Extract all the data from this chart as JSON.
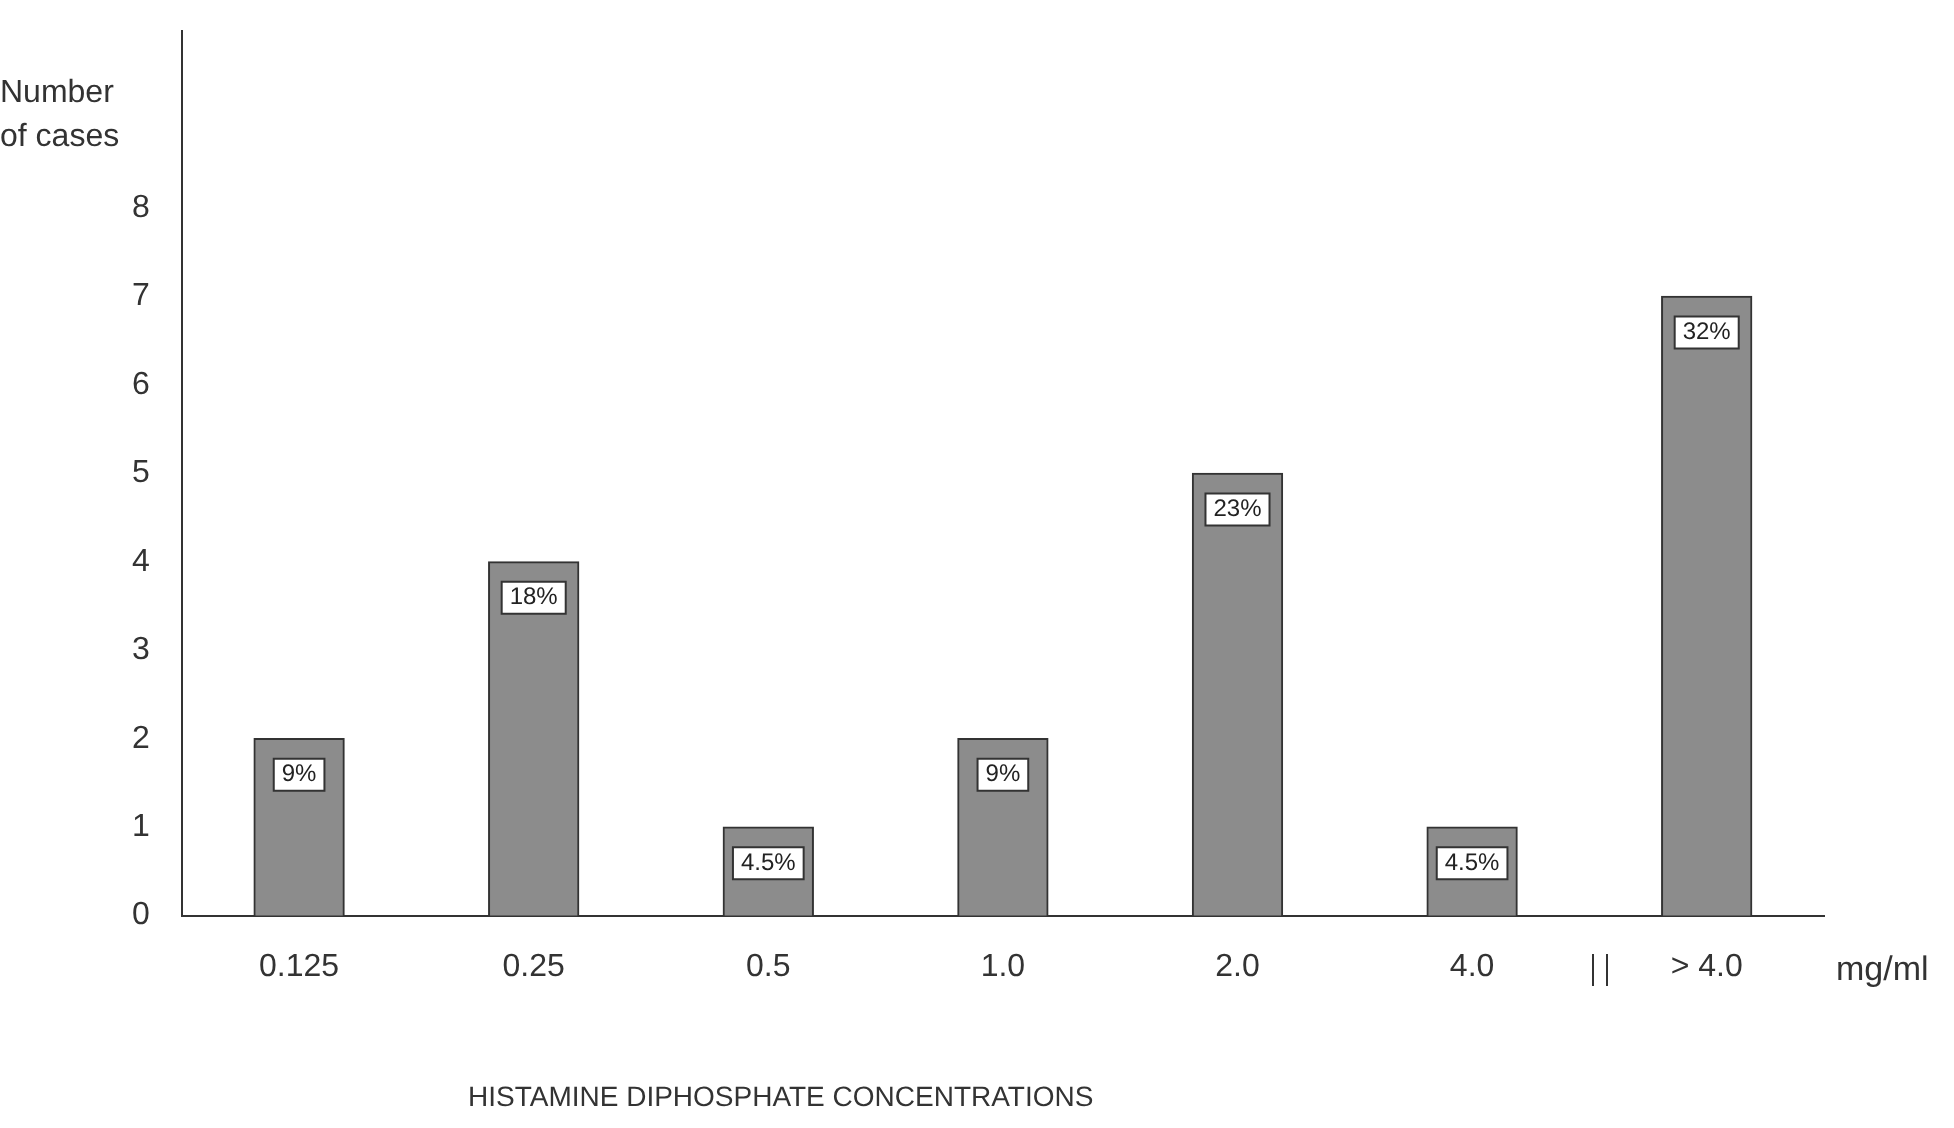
{
  "chart_data": {
    "type": "bar",
    "ylabel": "Number\nof cases",
    "xlabel": "HISTAMINE DIPHOSPHATE CONCENTRATIONS",
    "categories": [
      "0.125",
      "0.25",
      "0.5",
      "1.0",
      "2.0",
      "4.0",
      "> 4.0"
    ],
    "values": [
      2,
      4,
      1,
      2,
      5,
      1,
      7
    ],
    "color": "#8c8c8c",
    "ylim": [
      0,
      10
    ],
    "yticks": [
      0,
      1,
      2,
      3,
      4,
      5,
      6,
      7,
      8
    ],
    "grid": false,
    "annotations": [
      {
        "text": "9%",
        "x": "0.125",
        "y": 2
      },
      {
        "text": "18%",
        "x": "0.25",
        "y": 4
      },
      {
        "text": "4.5%",
        "x": "0.5",
        "y": 1
      },
      {
        "text": "9%",
        "x": "1.0",
        "y": 2
      },
      {
        "text": "23%",
        "x": "2.0",
        "y": 5
      },
      {
        "text": "4.5%",
        "x": "4.0",
        "y": 1
      },
      {
        "text": "32%",
        "x": "> 4.0",
        "y": 7
      },
      "mg/ml"
    ]
  }
}
